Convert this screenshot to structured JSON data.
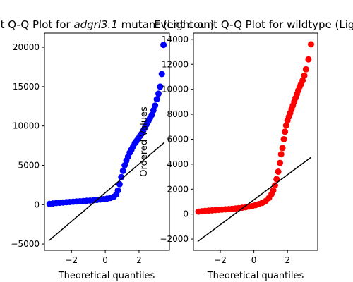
{
  "chart_data": [
    {
      "type": "scatter",
      "title_pre": "ount Q-Q Plot for ",
      "title_italic": "adgrl3.1",
      "title_post": " mutant (Light on)",
      "xlabel": "Theoretical quantiles",
      "ylabel": "",
      "xlim": [
        -3.6,
        3.8
      ],
      "ylim": [
        -5800,
        21800
      ],
      "xticks": [
        -2,
        0,
        2
      ],
      "xtick_labels": [
        "−2",
        "0",
        "2"
      ],
      "yticks": [
        -5000,
        0,
        5000,
        10000,
        15000,
        20000
      ],
      "ytick_labels": [
        "−5000",
        "0",
        "5000",
        "10000",
        "15000",
        "20000"
      ],
      "marker_color": "#0000ff",
      "points": {
        "x": [
          -3.3,
          -3.1,
          -2.9,
          -2.7,
          -2.5,
          -2.3,
          -2.1,
          -1.9,
          -1.7,
          -1.5,
          -1.3,
          -1.1,
          -0.9,
          -0.7,
          -0.5,
          -0.3,
          -0.1,
          0.1,
          0.3,
          0.5,
          0.65,
          0.75,
          0.85,
          0.95,
          1.05,
          1.15,
          1.25,
          1.35,
          1.45,
          1.55,
          1.65,
          1.75,
          1.85,
          1.95,
          2.05,
          2.15,
          2.25,
          2.35,
          2.45,
          2.55,
          2.65,
          2.75,
          2.85,
          2.95,
          3.05,
          3.15,
          3.25,
          3.35,
          3.45
        ],
        "y": [
          100,
          150,
          200,
          240,
          280,
          310,
          340,
          370,
          400,
          430,
          460,
          490,
          520,
          560,
          600,
          650,
          700,
          760,
          850,
          1000,
          1300,
          1800,
          2600,
          3500,
          4300,
          5000,
          5600,
          6100,
          6600,
          7000,
          7400,
          7800,
          8100,
          8400,
          8700,
          9000,
          9400,
          9800,
          10200,
          10600,
          11000,
          11400,
          12000,
          12600,
          13400,
          14100,
          15000,
          16600,
          20300
        ]
      },
      "fit_line": {
        "x": [
          -3.35,
          3.5
        ],
        "y": [
          -4600,
          7900
        ]
      }
    },
    {
      "type": "scatter",
      "title": "Event count Q-Q Plot for wildtype (Ligh",
      "xlabel": "Theoretical quantiles",
      "ylabel": "Ordered Values",
      "xlim": [
        -3.6,
        3.8
      ],
      "ylim": [
        -2900,
        14500
      ],
      "xticks": [
        -2,
        0,
        2
      ],
      "xtick_labels": [
        "−2",
        "0",
        "2"
      ],
      "yticks": [
        -2000,
        0,
        2000,
        4000,
        6000,
        8000,
        10000,
        12000,
        14000
      ],
      "ytick_labels": [
        "−2000",
        "0",
        "2000",
        "4000",
        "6000",
        "8000",
        "10000",
        "12000",
        "14000"
      ],
      "marker_color": "#ff0000",
      "points": {
        "x": [
          -3.3,
          -3.1,
          -2.9,
          -2.7,
          -2.5,
          -2.3,
          -2.1,
          -1.9,
          -1.7,
          -1.5,
          -1.3,
          -1.1,
          -0.9,
          -0.7,
          -0.5,
          -0.3,
          -0.1,
          0.1,
          0.3,
          0.5,
          0.7,
          0.9,
          1.05,
          1.15,
          1.25,
          1.35,
          1.45,
          1.55,
          1.62,
          1.7,
          1.78,
          1.85,
          1.92,
          2.0,
          2.08,
          2.16,
          2.24,
          2.32,
          2.4,
          2.48,
          2.56,
          2.64,
          2.72,
          2.8,
          2.9,
          3.0,
          3.1,
          3.25,
          3.4
        ],
        "y": [
          200,
          230,
          260,
          280,
          300,
          320,
          340,
          360,
          380,
          400,
          420,
          450,
          480,
          510,
          550,
          600,
          650,
          720,
          800,
          900,
          1050,
          1300,
          1600,
          1900,
          2300,
          2800,
          3400,
          4100,
          4800,
          5300,
          6000,
          6600,
          7100,
          7500,
          7800,
          8100,
          8400,
          8700,
          9000,
          9300,
          9600,
          9900,
          10200,
          10400,
          10700,
          11100,
          11600,
          12400,
          13600
        ]
      },
      "fit_line": {
        "x": [
          -3.35,
          3.4
        ],
        "y": [
          -2200,
          4550
        ]
      }
    }
  ]
}
